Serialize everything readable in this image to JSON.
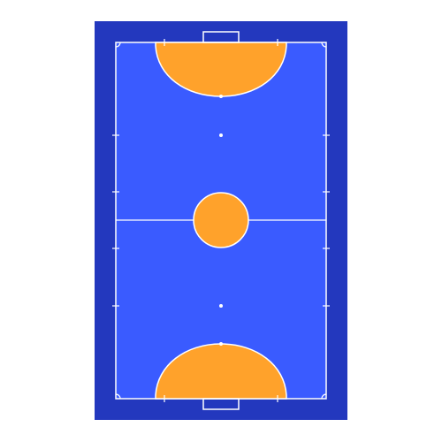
{
  "court": {
    "sport": "futsal",
    "orientation": "vertical",
    "colors": {
      "background": "#ffffff",
      "outer_surround": "#2338BE",
      "playing_surface": "#3A5BFF",
      "penalty_and_center_areas": "#FFA22B",
      "lines": "#ffffff"
    },
    "elements": [
      "outer-surround",
      "playing-surface",
      "halfway-line",
      "center-circle",
      "top-penalty-area",
      "bottom-penalty-area",
      "top-goal",
      "bottom-goal",
      "penalty-marks",
      "second-penalty-marks",
      "substitution-zone-marks",
      "corner-arcs"
    ]
  }
}
